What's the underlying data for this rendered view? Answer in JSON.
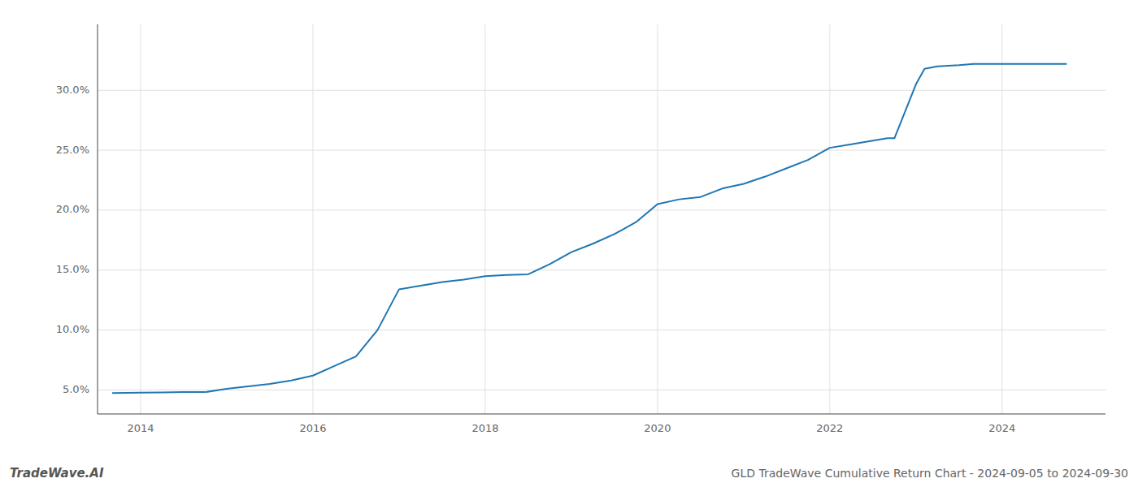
{
  "chart_data": {
    "type": "line",
    "title": "GLD TradeWave Cumulative Return Chart - 2024-09-05 to 2024-09-30",
    "annotations": [
      "TradeWave.AI"
    ],
    "color": "#1f77b4",
    "grid": true,
    "x": [
      2013.67,
      2014.0,
      2014.25,
      2014.5,
      2014.75,
      2015.0,
      2015.25,
      2015.5,
      2015.75,
      2016.0,
      2016.25,
      2016.5,
      2016.75,
      2017.0,
      2017.25,
      2017.5,
      2017.75,
      2018.0,
      2018.25,
      2018.5,
      2018.75,
      2019.0,
      2019.25,
      2019.5,
      2019.75,
      2020.0,
      2020.25,
      2020.5,
      2020.75,
      2021.0,
      2021.25,
      2021.5,
      2021.75,
      2022.0,
      2022.25,
      2022.5,
      2022.67,
      2022.75,
      2023.0,
      2023.1,
      2023.25,
      2023.5,
      2023.67,
      2024.0,
      2024.25,
      2024.5,
      2024.75
    ],
    "values": [
      4.75,
      4.78,
      4.8,
      4.82,
      4.82,
      5.1,
      5.3,
      5.5,
      5.8,
      6.2,
      7.0,
      7.8,
      10.0,
      13.4,
      13.7,
      14.0,
      14.2,
      14.5,
      14.6,
      14.65,
      15.5,
      16.5,
      17.2,
      18.0,
      19.0,
      20.5,
      20.9,
      21.1,
      21.8,
      22.2,
      22.8,
      23.5,
      24.2,
      25.2,
      25.5,
      25.8,
      26.0,
      26.0,
      30.5,
      31.8,
      32.0,
      32.1,
      32.2,
      32.2,
      32.2,
      32.2,
      32.2
    ],
    "xlim": [
      2013.5,
      2025.2
    ],
    "ylim": [
      3.0,
      35.5
    ],
    "xticks": [
      2014,
      2016,
      2018,
      2020,
      2022,
      2024
    ],
    "yticks": [
      {
        "value": 5.0,
        "label": "5.0%"
      },
      {
        "value": 10.0,
        "label": "10.0%"
      },
      {
        "value": 15.0,
        "label": "15.0%"
      },
      {
        "value": 20.0,
        "label": "20.0%"
      },
      {
        "value": 25.0,
        "label": "25.0%"
      },
      {
        "value": 30.0,
        "label": "30.0%"
      }
    ]
  }
}
